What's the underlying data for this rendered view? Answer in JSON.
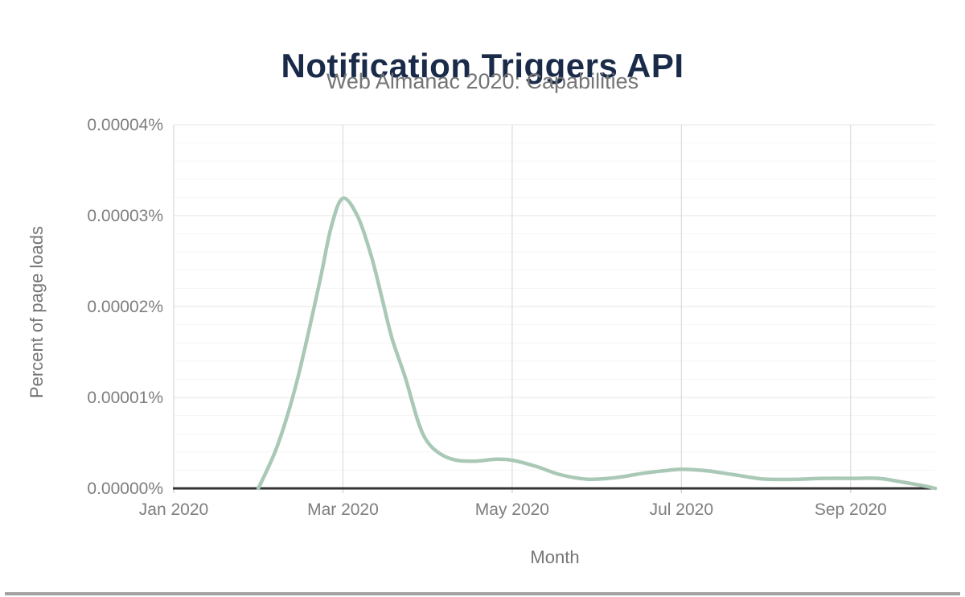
{
  "header": {
    "title": "Notification Triggers API",
    "subtitle": "Web Almanac 2020: Capabilities"
  },
  "colors": {
    "title": "#1a2b49",
    "subtitle": "#757575",
    "tick_label": "#7e7e7e",
    "line": "#a9c8b6",
    "axis": "#333333",
    "grid_major": "#e9e9e9",
    "grid_minor": "#f5f5f5",
    "grid_vertical": "#dcdcdc"
  },
  "chart_data": {
    "type": "line",
    "title": "Notification Triggers API",
    "subtitle": "Web Almanac 2020: Capabilities",
    "xlabel": "Month",
    "ylabel": "Percent of page loads",
    "x_tick_labels": [
      "Jan 2020",
      "Mar 2020",
      "May 2020",
      "Jul 2020",
      "Sep 2020"
    ],
    "x_tick_months": [
      0,
      2,
      4,
      6,
      8
    ],
    "x_range_months": [
      0,
      9
    ],
    "y_tick_labels": [
      "0.00000%",
      "0.00001%",
      "0.00002%",
      "0.00003%",
      "0.00004%"
    ],
    "y_tick_values": [
      0,
      1e-05,
      2e-05,
      3e-05,
      4e-05
    ],
    "ylim": [
      0,
      4e-05
    ],
    "y_minor_step": 2e-06,
    "grid": {
      "horizontal_major": true,
      "horizontal_minor": true,
      "vertical_at_labeled_months": true
    },
    "legend": "none",
    "line_color": "#a9c8b6",
    "monthly_values_percent": {
      "Jan 2020": 0,
      "Feb 2020": 0,
      "Mar 2020": 3.19e-05,
      "Apr 2020": 5.1e-06,
      "May 2020": 3.1e-06,
      "Jun 2020": 1e-06,
      "Jul 2020": 2.1e-06,
      "Aug 2020": 1e-06,
      "Sep 2020": 1.1e-06,
      "Oct 2020": 0
    },
    "series": [
      {
        "name": "Percent of page loads",
        "points_month_percent": [
          [
            0,
            0
          ],
          [
            0.5,
            0
          ],
          [
            1.0,
            0
          ],
          [
            1.23,
            4.8e-06
          ],
          [
            1.46,
            1.19e-05
          ],
          [
            1.72,
            2.25e-05
          ],
          [
            1.86,
            2.87e-05
          ],
          [
            2.0,
            3.19e-05
          ],
          [
            2.18,
            2.98e-05
          ],
          [
            2.34,
            2.54e-05
          ],
          [
            2.46,
            2.1e-05
          ],
          [
            2.58,
            1.65e-05
          ],
          [
            2.74,
            1.21e-05
          ],
          [
            2.89,
            7.3e-06
          ],
          [
            3.0,
            5.1e-06
          ],
          [
            3.15,
            3.8e-06
          ],
          [
            3.34,
            3.1e-06
          ],
          [
            3.57,
            3e-06
          ],
          [
            3.81,
            3.2e-06
          ],
          [
            4.0,
            3.1e-06
          ],
          [
            4.29,
            2.4e-06
          ],
          [
            4.57,
            1.5e-06
          ],
          [
            4.9,
            1e-06
          ],
          [
            5.24,
            1.2e-06
          ],
          [
            5.57,
            1.7e-06
          ],
          [
            5.86,
            2e-06
          ],
          [
            6.03,
            2.1e-06
          ],
          [
            6.33,
            1.9e-06
          ],
          [
            6.62,
            1.5e-06
          ],
          [
            6.9,
            1.1e-06
          ],
          [
            7.03,
            1e-06
          ],
          [
            7.38,
            1e-06
          ],
          [
            7.66,
            1.1e-06
          ],
          [
            8.03,
            1.1e-06
          ],
          [
            8.33,
            1.1e-06
          ],
          [
            8.61,
            7e-07
          ],
          [
            8.85,
            3e-07
          ],
          [
            9.0,
            0
          ]
        ]
      }
    ]
  }
}
